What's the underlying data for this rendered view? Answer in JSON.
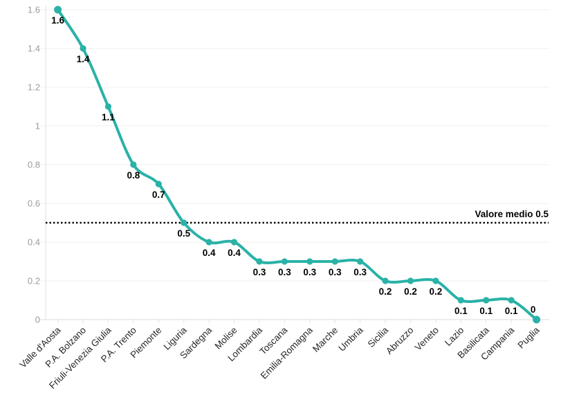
{
  "chart_data": {
    "type": "line",
    "title": "",
    "xlabel": "",
    "ylabel": "",
    "categories": [
      "Valle d'Aosta",
      "P.A. Bolzano",
      "Friuli-Venezia Giulia",
      "P.A. Trento",
      "Piemonte",
      "Liguria",
      "Sardegna",
      "Molise",
      "Lombardia",
      "Toscana",
      "Emilia-Romagna",
      "Marche",
      "Umbria",
      "Sicilia",
      "Abruzzo",
      "Veneto",
      "Lazio",
      "Basilicata",
      "Campania",
      "Puglia"
    ],
    "values": [
      1.6,
      1.4,
      1.1,
      0.8,
      0.7,
      0.5,
      0.4,
      0.4,
      0.3,
      0.3,
      0.3,
      0.3,
      0.3,
      0.2,
      0.2,
      0.2,
      0.1,
      0.1,
      0.1,
      0
    ],
    "point_labels": [
      "1.6",
      "1.4",
      "1.1",
      "0.8",
      "0.7",
      "0.5",
      "0.4",
      "0.4",
      "0.3",
      "0.3",
      "0.3",
      "0.3",
      "0.3",
      "0.2",
      "0.2",
      "0.2",
      "0.1",
      "0.1",
      "0.1",
      "0"
    ],
    "ylim": [
      0,
      1.6
    ],
    "ytick_step": 0.2,
    "ytick_labels": [
      "0",
      "0.2",
      "0.4",
      "0.6",
      "0.8",
      "1",
      "1.2",
      "1.4",
      "1.6"
    ],
    "grid": true,
    "legend": "none",
    "reference_line": {
      "value": 0.5,
      "label": "Valore medio 0.5"
    },
    "colors": {
      "series": "#2ab2a7",
      "reference_line": "#000000",
      "data_label": "#000000",
      "annotation_text": "#000000",
      "ytick_text": "#9b9b9b",
      "xtick_text": "#262626",
      "gridline": "#efefef",
      "axis_line": "#e2e2e2",
      "baseline": "#dcdcdc",
      "background": "#ffffff"
    }
  }
}
